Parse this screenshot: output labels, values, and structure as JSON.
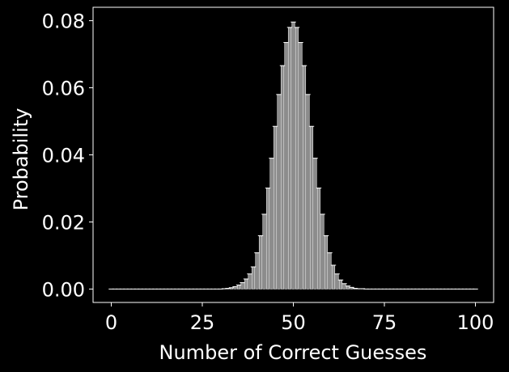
{
  "chart_data": {
    "type": "bar",
    "title": "",
    "xlabel": "Number of Correct Guesses",
    "ylabel": "Probability",
    "xlim": [
      -5,
      105
    ],
    "ylim": [
      -0.004,
      0.084
    ],
    "xticks": [
      0,
      25,
      50,
      75,
      100
    ],
    "xtick_labels": [
      "0",
      "25",
      "50",
      "75",
      "100"
    ],
    "yticks": [
      0.0,
      0.02,
      0.04,
      0.06,
      0.08
    ],
    "ytick_labels": [
      "0.00",
      "0.02",
      "0.04",
      "0.06",
      "0.08"
    ],
    "grid": false,
    "legend": "none",
    "error_bars": true,
    "x": [
      0,
      1,
      2,
      3,
      4,
      5,
      6,
      7,
      8,
      9,
      10,
      11,
      12,
      13,
      14,
      15,
      16,
      17,
      18,
      19,
      20,
      21,
      22,
      23,
      24,
      25,
      26,
      27,
      28,
      29,
      30,
      31,
      32,
      33,
      34,
      35,
      36,
      37,
      38,
      39,
      40,
      41,
      42,
      43,
      44,
      45,
      46,
      47,
      48,
      49,
      50,
      51,
      52,
      53,
      54,
      55,
      56,
      57,
      58,
      59,
      60,
      61,
      62,
      63,
      64,
      65,
      66,
      67,
      68,
      69,
      70,
      71,
      72,
      73,
      74,
      75,
      76,
      77,
      78,
      79,
      80,
      81,
      82,
      83,
      84,
      85,
      86,
      87,
      88,
      89,
      90,
      91,
      92,
      93,
      94,
      95,
      96,
      97,
      98,
      99,
      100
    ],
    "values": [
      0,
      0,
      0,
      0,
      0,
      0,
      0,
      0,
      0,
      0,
      0,
      0,
      0,
      0,
      0,
      0,
      0,
      0,
      0,
      0,
      0,
      0,
      0,
      0,
      0,
      0,
      0,
      0,
      0,
      0,
      0,
      0.0001,
      0.0002,
      0.0004,
      0.0007,
      0.0012,
      0.0019,
      0.003,
      0.0045,
      0.0066,
      0.0108,
      0.0159,
      0.0223,
      0.0301,
      0.039,
      0.0485,
      0.058,
      0.0666,
      0.0735,
      0.078,
      0.0796,
      0.078,
      0.0735,
      0.0666,
      0.058,
      0.0485,
      0.039,
      0.0301,
      0.0223,
      0.0159,
      0.0108,
      0.0071,
      0.0045,
      0.0027,
      0.0016,
      0.0009,
      0.0005,
      0.0002,
      0.0001,
      0.0001,
      0,
      0,
      0,
      0,
      0,
      0,
      0,
      0,
      0,
      0,
      0,
      0,
      0,
      0,
      0,
      0,
      0,
      0,
      0,
      0,
      0,
      0,
      0,
      0,
      0,
      0,
      0,
      0,
      0,
      0,
      0
    ],
    "colors": {
      "background": "#000000",
      "bar_fill": "#8c8c8c",
      "bar_edge": "#ffffff",
      "axis": "#ffffff",
      "text": "#ffffff"
    }
  }
}
